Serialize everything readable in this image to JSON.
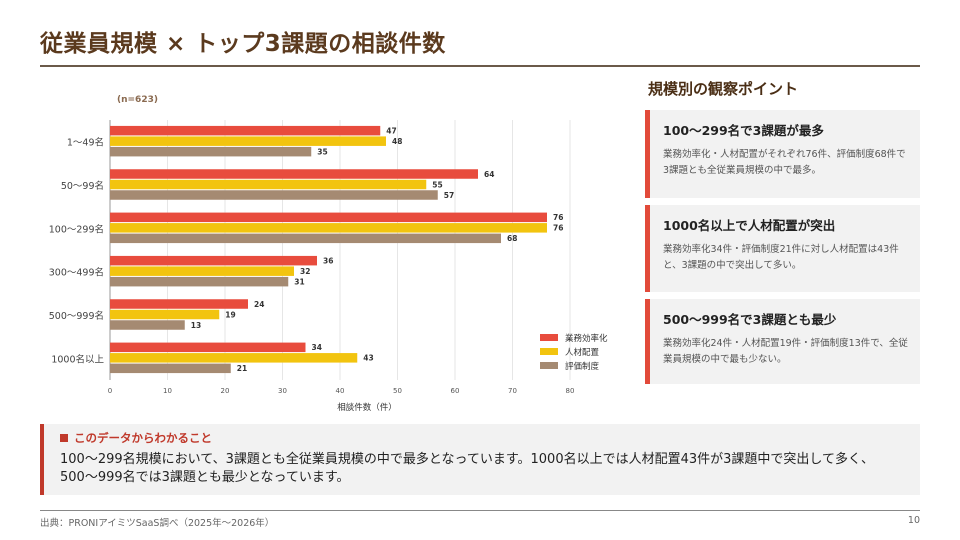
{
  "title": "従業員規模 × トップ3課題の相談件数",
  "chart_data": {
    "type": "bar",
    "orientation": "horizontal",
    "note": "(n=623)",
    "categories": [
      "1〜49名",
      "50〜99名",
      "100〜299名",
      "300〜499名",
      "500〜999名",
      "1000名以上"
    ],
    "series": [
      {
        "name": "業務効率化",
        "color": "#e84c3d",
        "values": [
          47,
          64,
          76,
          36,
          24,
          34
        ]
      },
      {
        "name": "人材配置",
        "color": "#f2c40f",
        "values": [
          48,
          55,
          76,
          32,
          19,
          43
        ]
      },
      {
        "name": "評価制度",
        "color": "#a58a72",
        "values": [
          35,
          57,
          68,
          31,
          13,
          21
        ]
      }
    ],
    "xlabel": "相談件数（件）",
    "xlim": [
      0,
      80
    ],
    "xticks": [
      0,
      10,
      20,
      30,
      40,
      50,
      60,
      70,
      80
    ],
    "grid": true,
    "legend_position": "bottom-right"
  },
  "side": {
    "title": "規模別の観察ポイント",
    "cards": [
      {
        "heading": "100〜299名で3課題が最多",
        "body": "業務効率化・人材配置がそれぞれ76件、評価制度68件で3課題とも全従業員規模の中で最多。"
      },
      {
        "heading": "1000名以上で人材配置が突出",
        "body": "業務効率化34件・評価制度21件に対し人材配置は43件と、3課題の中で突出して多い。"
      },
      {
        "heading": "500〜999名で3課題とも最少",
        "body": "業務効率化24件・人材配置19件・評価制度13件で、全従業員規模の中で最も少ない。"
      }
    ]
  },
  "insight": {
    "heading": "このデータからわかること",
    "body": "100〜299名規模において、3課題とも全従業員規模の中で最多となっています。1000名以上では人材配置43件が3課題中で突出して多く、500〜999名では3課題とも最少となっています。"
  },
  "footer": {
    "source": "出典：PRONIアイミツSaaS調べ（2025年〜2026年）",
    "page": "10"
  }
}
